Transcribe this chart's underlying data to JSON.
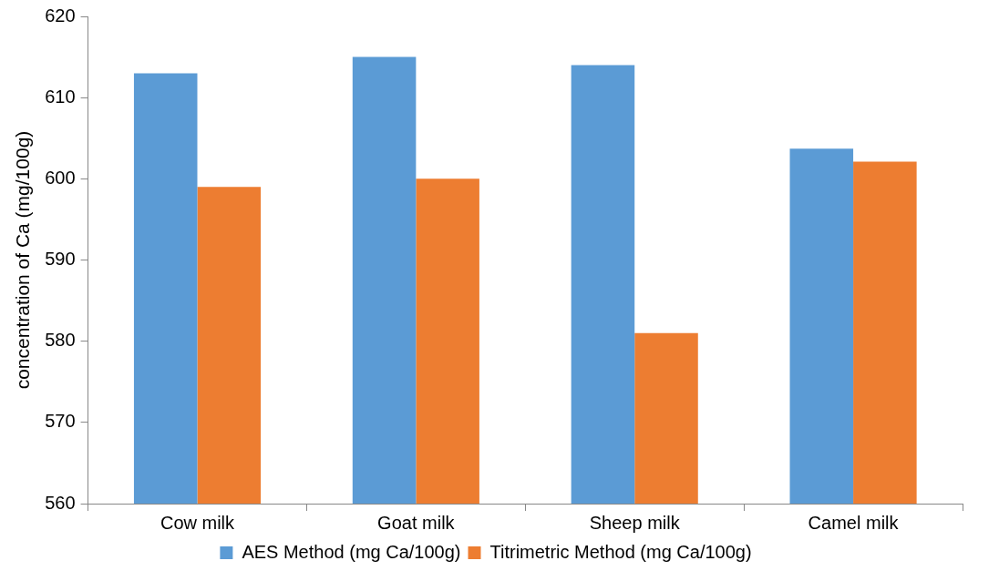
{
  "chart_data": {
    "type": "bar",
    "ylabel": "concentration of Ca (mg/100g)",
    "categories": [
      "Cow milk",
      "Goat milk",
      "Sheep milk",
      "Camel milk"
    ],
    "series": [
      {
        "name": "AES Method (mg Ca/100g)",
        "color": "#5b9bd5",
        "values": [
          613,
          615,
          614,
          603.7
        ]
      },
      {
        "name": "Titrimetric Method (mg Ca/100g)",
        "color": "#ed7d31",
        "values": [
          599,
          600,
          581,
          602.1
        ]
      }
    ],
    "ylim": [
      560,
      620
    ],
    "yticks": [
      560,
      570,
      580,
      590,
      600,
      610,
      620
    ],
    "grid": false,
    "legend": "bottom"
  }
}
